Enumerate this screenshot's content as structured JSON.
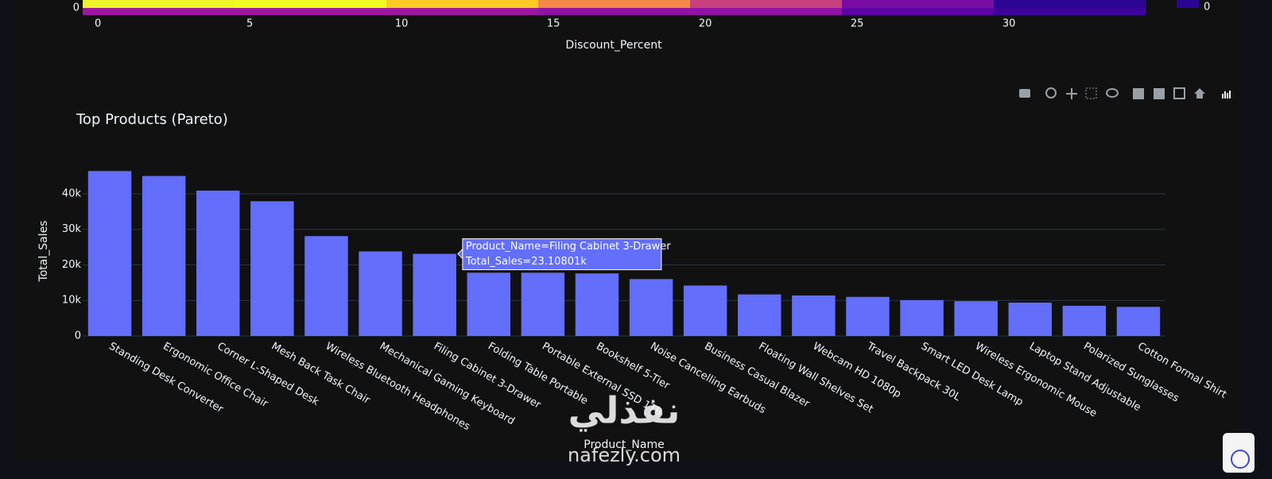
{
  "chart_data": [
    {
      "type": "heatmap",
      "x_label": "Discount_Percent",
      "xlim": [
        -0.5,
        34.5
      ],
      "xticks": [
        0,
        5,
        10,
        15,
        20,
        25,
        30
      ],
      "yticks": [
        0
      ],
      "colorbar_ticks": [
        0
      ],
      "colors": [
        [
          "#eef528",
          "#f0f921",
          "#fdca26",
          "#f48849",
          "#c8417e",
          "#7a0ca6",
          "#2c0594"
        ],
        [
          "#9c179e",
          "#9c179e",
          "#9c179e",
          "#8f12a2",
          "#8f12a2",
          "#5c02a4",
          "#3c049b"
        ]
      ],
      "colorbar_color": "#2a0593"
    },
    {
      "type": "bar",
      "title": "Top Products (Pareto)",
      "x_label": "Product_Name",
      "y_label": "Total_Sales",
      "categories": [
        "Standing Desk Converter",
        "Ergonomic Office Chair",
        "Corner L-Shaped Desk",
        "Mesh Back Task Chair",
        "Wireless Bluetooth Headphones",
        "Mechanical Gaming Keyboard",
        "Filing Cabinet 3-Drawer",
        "Folding Table Portable",
        "Portable External SSD 1TB",
        "Bookshelf 5-Tier",
        "Noise Cancelling Earbuds",
        "Business Casual Blazer",
        "Floating Wall Shelves Set",
        "Webcam HD 1080p",
        "Travel Backpack 30L",
        "Smart LED Desk Lamp",
        "Wireless Ergonomic Mouse",
        "Laptop Stand Adjustable",
        "Polarized Sunglasses",
        "Cotton Formal Shirt"
      ],
      "values": [
        46400,
        45000,
        40900,
        37900,
        28100,
        23800,
        23108.01,
        17800,
        17800,
        17600,
        16000,
        14200,
        11700,
        11400,
        11000,
        10100,
        9800,
        9400,
        8500,
        8200
      ],
      "color": "#636efa",
      "ylim": [
        0,
        48700
      ],
      "yticks": [
        0,
        {
          "value": 10000,
          "label": "10k"
        },
        {
          "value": 20000,
          "label": "20k"
        },
        {
          "value": 30000,
          "label": "30k"
        },
        {
          "value": 40000,
          "label": "40k"
        }
      ],
      "grid": true,
      "tooltip": {
        "index": 6,
        "lines": [
          "Product_Name=Filing Cabinet 3-Drawer",
          "Total_Sales=23.10801k"
        ]
      }
    }
  ],
  "watermark": {
    "arabic": "نفذلي",
    "latin": "nafezly.com"
  }
}
